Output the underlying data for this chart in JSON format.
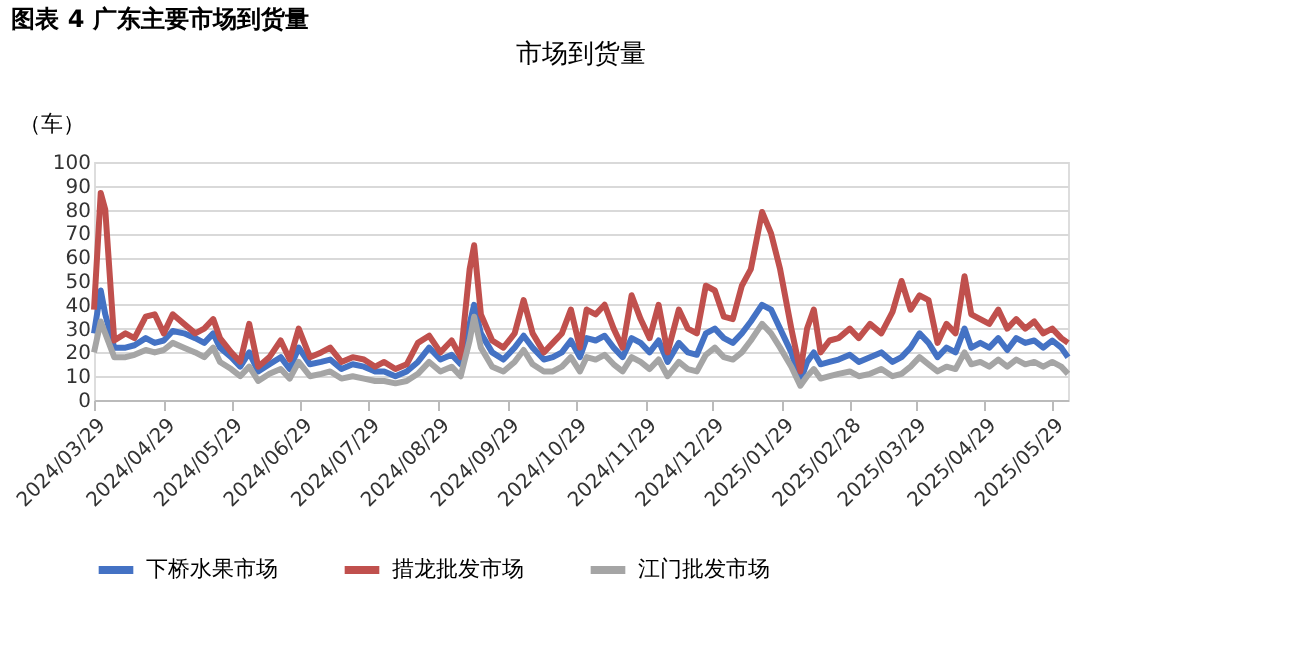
{
  "chart_data": {
    "type": "line",
    "title": "图表 4 广东主要市场到货量",
    "subtitle": "市场到货量",
    "ylabel": "（车）",
    "x": [
      "2024-03-29",
      "2024-04-01",
      "2024-04-03",
      "2024-04-07",
      "2024-04-12",
      "2024-04-16",
      "2024-04-21",
      "2024-04-25",
      "2024-04-29",
      "2024-05-03",
      "2024-05-08",
      "2024-05-13",
      "2024-05-17",
      "2024-05-21",
      "2024-05-24",
      "2024-05-29",
      "2024-06-02",
      "2024-06-06",
      "2024-06-10",
      "2024-06-15",
      "2024-06-20",
      "2024-06-24",
      "2024-06-28",
      "2024-07-03",
      "2024-07-08",
      "2024-07-12",
      "2024-07-17",
      "2024-07-22",
      "2024-07-27",
      "2024-08-01",
      "2024-08-05",
      "2024-08-10",
      "2024-08-15",
      "2024-08-20",
      "2024-08-25",
      "2024-08-30",
      "2024-09-04",
      "2024-09-08",
      "2024-09-12",
      "2024-09-14",
      "2024-09-17",
      "2024-09-22",
      "2024-09-27",
      "2024-10-02",
      "2024-10-06",
      "2024-10-10",
      "2024-10-15",
      "2024-10-19",
      "2024-10-23",
      "2024-10-27",
      "2024-10-31",
      "2024-11-03",
      "2024-11-07",
      "2024-11-11",
      "2024-11-15",
      "2024-11-19",
      "2024-11-23",
      "2024-11-27",
      "2024-12-01",
      "2024-12-05",
      "2024-12-09",
      "2024-12-14",
      "2024-12-18",
      "2024-12-22",
      "2024-12-26",
      "2024-12-30",
      "2025-01-03",
      "2025-01-07",
      "2025-01-11",
      "2025-01-15",
      "2025-01-20",
      "2025-01-24",
      "2025-01-28",
      "2025-02-02",
      "2025-02-06",
      "2025-02-09",
      "2025-02-12",
      "2025-02-15",
      "2025-02-19",
      "2025-02-23",
      "2025-02-28",
      "2025-03-04",
      "2025-03-09",
      "2025-03-14",
      "2025-03-19",
      "2025-03-23",
      "2025-03-27",
      "2025-03-31",
      "2025-04-04",
      "2025-04-08",
      "2025-04-12",
      "2025-04-16",
      "2025-04-20",
      "2025-04-23",
      "2025-04-27",
      "2025-05-01",
      "2025-05-05",
      "2025-05-09",
      "2025-05-13",
      "2025-05-17",
      "2025-05-21",
      "2025-05-25",
      "2025-05-29",
      "2025-06-02",
      "2025-06-05"
    ],
    "series": [
      {
        "name": "下桥水果市场",
        "color": "#4472c4",
        "values": [
          28,
          46,
          36,
          22,
          22,
          23,
          26,
          24,
          25,
          29,
          28,
          26,
          24,
          28,
          22,
          18,
          14,
          20,
          12,
          15,
          18,
          13,
          22,
          15,
          16,
          17,
          13,
          15,
          14,
          12,
          12,
          10,
          12,
          16,
          22,
          17,
          19,
          15,
          32,
          40,
          28,
          20,
          17,
          22,
          27,
          22,
          17,
          18,
          20,
          25,
          18,
          26,
          25,
          27,
          22,
          18,
          26,
          24,
          20,
          25,
          16,
          24,
          20,
          19,
          28,
          30,
          26,
          24,
          28,
          33,
          40,
          38,
          30,
          20,
          8,
          16,
          20,
          15,
          16,
          17,
          19,
          16,
          18,
          20,
          16,
          18,
          22,
          28,
          24,
          18,
          22,
          20,
          30,
          22,
          24,
          22,
          26,
          21,
          26,
          24,
          25,
          22,
          25,
          22,
          18
        ]
      },
      {
        "name": "措龙批发市场",
        "color": "#c0504d",
        "values": [
          38,
          87,
          80,
          25,
          28,
          26,
          35,
          36,
          28,
          36,
          32,
          28,
          30,
          34,
          26,
          20,
          16,
          32,
          14,
          18,
          25,
          17,
          30,
          18,
          20,
          22,
          16,
          18,
          17,
          14,
          16,
          13,
          15,
          24,
          27,
          20,
          25,
          18,
          55,
          65,
          36,
          25,
          22,
          28,
          42,
          28,
          20,
          24,
          28,
          38,
          22,
          38,
          36,
          40,
          30,
          22,
          44,
          34,
          26,
          40,
          20,
          38,
          30,
          28,
          48,
          46,
          35,
          34,
          48,
          55,
          79,
          70,
          55,
          30,
          12,
          30,
          38,
          20,
          25,
          26,
          30,
          26,
          32,
          28,
          37,
          50,
          38,
          44,
          42,
          24,
          32,
          28,
          52,
          36,
          34,
          32,
          38,
          30,
          34,
          30,
          33,
          28,
          30,
          26,
          24
        ]
      },
      {
        "name": "江门批发市场",
        "color": "#a5a5a5",
        "values": [
          20,
          33,
          28,
          18,
          18,
          19,
          21,
          20,
          21,
          24,
          22,
          20,
          18,
          22,
          16,
          13,
          10,
          14,
          8,
          11,
          13,
          9,
          16,
          10,
          11,
          12,
          9,
          10,
          9,
          8,
          8,
          7,
          8,
          11,
          16,
          12,
          14,
          10,
          25,
          35,
          22,
          14,
          12,
          16,
          21,
          15,
          12,
          12,
          14,
          18,
          12,
          18,
          17,
          19,
          15,
          12,
          18,
          16,
          13,
          17,
          10,
          16,
          13,
          12,
          19,
          22,
          18,
          17,
          20,
          25,
          32,
          28,
          22,
          14,
          6,
          10,
          13,
          9,
          10,
          11,
          12,
          10,
          11,
          13,
          10,
          11,
          14,
          18,
          15,
          12,
          14,
          13,
          20,
          15,
          16,
          14,
          17,
          14,
          17,
          15,
          16,
          14,
          16,
          14,
          11
        ]
      }
    ],
    "xlim": [
      "2024-03-29",
      "2025-06-05"
    ],
    "xticks": [
      {
        "value": "2024-03-29",
        "label": "2024/03/29"
      },
      {
        "value": "2024-04-29",
        "label": "2024/04/29"
      },
      {
        "value": "2024-05-29",
        "label": "2024/05/29"
      },
      {
        "value": "2024-06-29",
        "label": "2024/06/29"
      },
      {
        "value": "2024-07-29",
        "label": "2024/07/29"
      },
      {
        "value": "2024-08-29",
        "label": "2024/08/29"
      },
      {
        "value": "2024-09-29",
        "label": "2024/09/29"
      },
      {
        "value": "2024-10-29",
        "label": "2024/10/29"
      },
      {
        "value": "2024-11-29",
        "label": "2024/11/29"
      },
      {
        "value": "2024-12-29",
        "label": "2024/12/29"
      },
      {
        "value": "2025-01-29",
        "label": "2025/01/29"
      },
      {
        "value": "2025-02-28",
        "label": "2025/02/28"
      },
      {
        "value": "2025-03-29",
        "label": "2025/03/29"
      },
      {
        "value": "2025-04-29",
        "label": "2025/04/29"
      },
      {
        "value": "2025-05-29",
        "label": "2025/05/29"
      }
    ],
    "ylim": [
      0,
      100
    ],
    "yticks": [
      0,
      10,
      20,
      30,
      40,
      50,
      60,
      70,
      80,
      90,
      100
    ],
    "grid": "y",
    "legend": "bottom",
    "marker": "none",
    "line_style": "solid"
  }
}
